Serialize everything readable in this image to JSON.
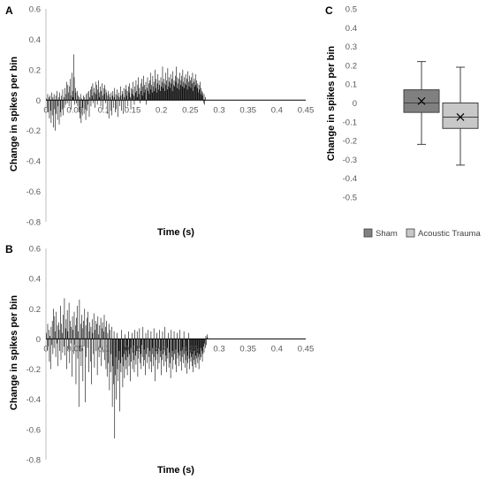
{
  "chart_data": [
    {
      "panel": "A",
      "type": "bar",
      "title": "",
      "xlabel": "Time (s)",
      "ylabel": "Change in spikes per bin",
      "ylim": [
        -0.8,
        0.6
      ],
      "yticks": [
        "0.6",
        "0.4",
        "0.2",
        "0",
        "-0.2",
        "-0.4",
        "-0.6",
        "-0.8"
      ],
      "xlim": [
        0,
        0.45
      ],
      "xticks": [
        "0",
        "0.05",
        "0.1",
        "0.15",
        "0.2",
        "0.25",
        "0.3",
        "0.35",
        "0.4",
        "0.45"
      ],
      "bar_color": "#000000",
      "bin_width_s": 0.001,
      "series": [
        {
          "x_start": 0.001,
          "x_step": 0.001,
          "values": [
            0.01,
            -0.05,
            0.04,
            -0.08,
            0.02,
            -0.12,
            0.03,
            -0.07,
            -0.15,
            0.05,
            -0.1,
            0.02,
            -0.18,
            0.04,
            -0.06,
            -0.2,
            0.03,
            -0.09,
            0.06,
            -0.13,
            -0.04,
            0.02,
            -0.16,
            0.05,
            -0.08,
            -0.11,
            0.03,
            -0.06,
            0.07,
            -0.1,
            0.02,
            -0.05,
            0.08,
            -0.03,
            0.04,
            0.12,
            -0.02,
            0.1,
            0.05,
            -0.04,
            0.09,
            0.14,
            0.03,
            -0.06,
            0.18,
            0.06,
            0.02,
            0.3,
            0.15,
            -0.03,
            0.08,
            0.05,
            -0.02,
            0.06,
            -0.04,
            0.03,
            -0.08,
            0.02,
            -0.12,
            0.04,
            -0.15,
            0.01,
            -0.1,
            -0.05,
            0.03,
            -0.09,
            0.02,
            -0.06,
            -0.13,
            0.04,
            -0.07,
            0.05,
            -0.03,
            0.06,
            -0.11,
            0.02,
            0.07,
            -0.04,
            0.09,
            0.03,
            0.11,
            -0.02,
            0.08,
            0.05,
            -0.05,
            0.12,
            0.04,
            0.1,
            -0.03,
            0.07,
            0.13,
            0.05,
            0.02,
            0.09,
            -0.04,
            0.06,
            0.11,
            0.03,
            -0.06,
            0.08,
            0.04,
            0.1,
            -0.02,
            0.07,
            0.05,
            -0.09,
            0.03,
            0.06,
            -0.12,
            0.04,
            0.02,
            -0.07,
            0.05,
            -0.1,
            0.03,
            0.06,
            -0.05,
            0.02,
            0.08,
            -0.08,
            0.04,
            -0.06,
            0.07,
            0.03,
            -0.11,
            0.05,
            0.02,
            -0.04,
            0.09,
            0.03,
            -0.07,
            0.06,
            0.04,
            -0.09,
            0.08,
            0.02,
            -0.05,
            0.07,
            0.1,
            0.03,
            0.06,
            -0.04,
            0.09,
            0.05,
            0.11,
            0.02,
            -0.06,
            0.08,
            0.04,
            0.07,
            0.12,
            0.03,
            -0.03,
            0.09,
            0.05,
            0.13,
            0.06,
            0.02,
            0.1,
            0.15,
            0.04,
            0.08,
            -0.02,
            0.11,
            0.06,
            0.14,
            0.03,
            0.09,
            0.16,
            0.05,
            0.1,
            0.07,
            0.12,
            -0.03,
            0.08,
            0.15,
            0.06,
            0.11,
            0.04,
            0.13,
            0.18,
            0.07,
            0.1,
            0.05,
            0.16,
            0.09,
            0.12,
            0.06,
            0.2,
            0.08,
            0.14,
            0.05,
            0.11,
            0.17,
            0.07,
            0.13,
            0.1,
            0.06,
            0.15,
            0.09,
            0.12,
            0.22,
            0.08,
            0.14,
            0.11,
            0.06,
            0.18,
            0.1,
            0.13,
            0.07,
            0.21,
            0.09,
            0.15,
            0.12,
            0.08,
            0.17,
            0.11,
            0.14,
            0.06,
            0.19,
            0.1,
            0.13,
            0.09,
            0.16,
            0.12,
            0.22,
            0.08,
            0.15,
            0.11,
            0.14,
            0.07,
            0.18,
            0.1,
            0.13,
            0.16,
            0.09,
            0.2,
            0.12,
            0.08,
            0.15,
            0.11,
            0.17,
            0.1,
            0.14,
            0.07,
            0.19,
            0.12,
            0.09,
            0.16,
            0.13,
            0.08,
            0.15,
            0.11,
            0.18,
            0.06,
            0.12,
            0.14,
            0.09,
            0.17,
            0.1,
            0.13,
            0.08,
            0.11,
            0.05,
            0.1,
            0.07,
            0.12,
            0.04,
            0.08,
            0.06,
            0.03,
            0.05,
            -0.02,
            0.04,
            -0.03,
            0.02
          ]
        }
      ]
    },
    {
      "panel": "B",
      "type": "bar",
      "title": "",
      "xlabel": "Time (s)",
      "ylabel": "Change in spikes per bin",
      "ylim": [
        -0.8,
        0.6
      ],
      "yticks": [
        "0.6",
        "0.4",
        "0.2",
        "0",
        "-0.2",
        "-0.4",
        "-0.6",
        "-0.8"
      ],
      "xlim": [
        0,
        0.45
      ],
      "xticks": [
        "0",
        "0.05",
        "0.1",
        "0.15",
        "0.2",
        "0.25",
        "0.3",
        "0.35",
        "0.4",
        "0.45"
      ],
      "bar_color": "#000000",
      "bin_width_s": 0.001,
      "series": [
        {
          "x_start": 0.001,
          "x_step": 0.001,
          "values": [
            0.04,
            -0.08,
            0.1,
            -0.05,
            0.06,
            -0.15,
            0.02,
            -0.2,
            0.08,
            -0.04,
            0.12,
            -0.1,
            0.2,
            -0.06,
            0.15,
            0.05,
            -0.12,
            0.18,
            -0.03,
            0.09,
            -0.18,
            0.11,
            0.06,
            -0.08,
            0.22,
            -0.14,
            0.1,
            0.04,
            -0.09,
            0.16,
            -0.05,
            0.27,
            -0.11,
            0.07,
            0.13,
            -0.2,
            0.19,
            0.05,
            -0.07,
            0.24,
            -0.16,
            0.12,
            -0.03,
            0.08,
            -0.25,
            0.15,
            0.06,
            -0.1,
            0.18,
            -0.04,
            0.09,
            -0.3,
            0.14,
            0.22,
            -0.13,
            0.05,
            -0.45,
            0.26,
            -0.08,
            0.1,
            -0.18,
            0.16,
            0.07,
            -0.28,
            0.12,
            -0.05,
            0.2,
            -0.42,
            0.09,
            -0.12,
            0.14,
            -0.06,
            0.18,
            -0.22,
            0.05,
            0.11,
            -0.15,
            0.08,
            -0.3,
            0.13,
            0.04,
            -0.1,
            0.17,
            -0.19,
            0.06,
            0.12,
            -0.08,
            0.1,
            -0.24,
            0.15,
            0.03,
            -0.12,
            0.09,
            -0.06,
            0.14,
            -0.18,
            0.07,
            0.11,
            -0.09,
            0.05,
            0.16,
            -0.14,
            0.08,
            -0.2,
            0.12,
            -0.25,
            0.04,
            -0.16,
            0.1,
            -0.34,
            0.06,
            -0.22,
            -0.1,
            0.08,
            -0.45,
            -0.18,
            -0.3,
            0.05,
            -0.66,
            -0.24,
            -0.12,
            -0.4,
            0.04,
            -0.2,
            -0.28,
            -0.14,
            -0.08,
            -0.48,
            -0.16,
            -0.22,
            0.06,
            -0.12,
            -0.32,
            -0.18,
            -0.1,
            -0.26,
            0.03,
            -0.14,
            -0.2,
            -0.08,
            -0.24,
            -0.12,
            0.05,
            -0.18,
            -0.1,
            -0.28,
            -0.06,
            -0.15,
            0.04,
            -0.2,
            -0.09,
            -0.14,
            -0.22,
            0.06,
            -0.11,
            -0.17,
            -0.08,
            0.05,
            -0.25,
            -0.13,
            -0.06,
            0.07,
            -0.16,
            -0.1,
            -0.2,
            -0.04,
            -0.12,
            0.08,
            -0.18,
            -0.07,
            -0.14,
            -0.24,
            0.04,
            -0.1,
            -0.16,
            -0.06,
            0.06,
            -0.12,
            -0.2,
            -0.08,
            -0.15,
            0.05,
            -0.22,
            -0.1,
            -0.06,
            -0.18,
            0.07,
            -0.12,
            -0.28,
            -0.08,
            -0.14,
            0.04,
            -0.1,
            -0.2,
            -0.06,
            -0.16,
            0.06,
            -0.12,
            -0.08,
            -0.24,
            -0.14,
            0.05,
            -0.1,
            -0.18,
            -0.07,
            0.08,
            -0.15,
            -0.11,
            -0.22,
            -0.06,
            -0.13,
            0.04,
            -0.19,
            -0.09,
            -0.16,
            -0.26,
            0.06,
            -0.12,
            -0.08,
            -0.2,
            -0.14,
            0.05,
            -0.1,
            -0.17,
            -0.07,
            -0.22,
            0.04,
            -0.13,
            -0.09,
            -0.18,
            -0.11,
            0.06,
            -0.15,
            -0.08,
            -0.21,
            -0.12,
            -0.06,
            -0.16,
            0.05,
            -0.1,
            -0.19,
            -0.14,
            -0.08,
            -0.23,
            -0.11,
            -0.16,
            0.04,
            -0.13,
            -0.2,
            -0.09,
            -0.15,
            -0.12,
            -0.18,
            -0.1,
            -0.22,
            -0.14,
            -0.08,
            -0.17,
            -0.11,
            -0.19,
            -0.13,
            -0.09,
            -0.16,
            -0.12,
            -0.2,
            -0.1,
            -0.14,
            -0.06,
            -0.12,
            -0.08,
            -0.15,
            -0.1,
            -0.05,
            -0.09,
            -0.03,
            -0.06,
            0.02,
            -0.04,
            0.03,
            0.01
          ]
        }
      ]
    },
    {
      "panel": "C",
      "type": "box",
      "title": "",
      "xlabel": "",
      "ylabel": "Change in spikes per bin",
      "ylim": [
        -0.5,
        0.5
      ],
      "yticks": [
        "0.5",
        "0.4",
        "0.3",
        "0.2",
        "0.1",
        "0",
        "-0.1",
        "-0.2",
        "-0.3",
        "-0.4",
        "-0.5"
      ],
      "legend_position": "bottom",
      "series": [
        {
          "name": "Sham",
          "color": "#808080",
          "min": -0.22,
          "q1": -0.05,
          "median": 0.0,
          "q3": 0.07,
          "max": 0.22,
          "mean": 0.01
        },
        {
          "name": "Acoustic Trauma",
          "color": "#c8c8c8",
          "min": -0.33,
          "q1": -0.135,
          "median": -0.075,
          "q3": 0.0,
          "max": 0.19,
          "mean": -0.075
        }
      ]
    }
  ]
}
